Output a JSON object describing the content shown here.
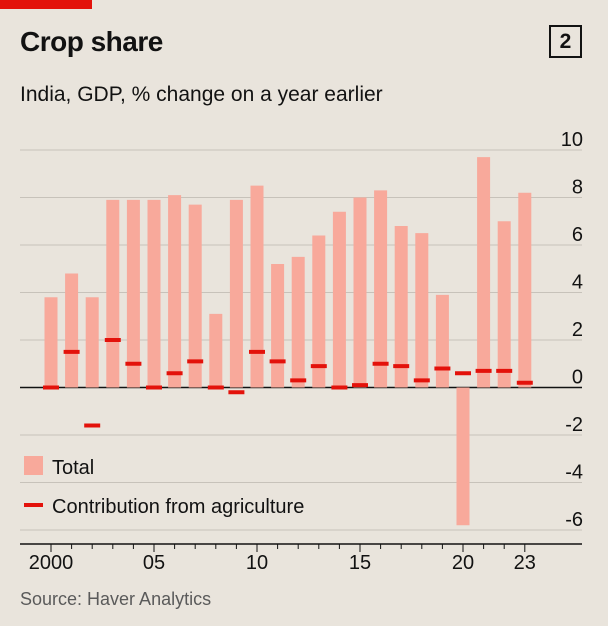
{
  "header": {
    "title": "Crop share",
    "subtitle": "India, GDP, % change on a year earlier",
    "badge": "2"
  },
  "footer": {
    "source": "Source: Haver Analytics"
  },
  "colors": {
    "total": "#f8a99b",
    "agriculture": "#e3120b",
    "grid": "#c7c2ba",
    "accent": "#e3120b"
  },
  "chart_data": {
    "type": "bar",
    "title": "Crop share",
    "subtitle": "India, GDP, % change on a year earlier",
    "years": [
      2000,
      2001,
      2002,
      2003,
      2004,
      2005,
      2006,
      2007,
      2008,
      2009,
      2010,
      2011,
      2012,
      2013,
      2014,
      2015,
      2016,
      2017,
      2018,
      2019,
      2020,
      2021,
      2022,
      2023
    ],
    "x_tick_labels": [
      {
        "year": 2000,
        "label": "2000"
      },
      {
        "year": 2005,
        "label": "05"
      },
      {
        "year": 2010,
        "label": "10"
      },
      {
        "year": 2015,
        "label": "15"
      },
      {
        "year": 2020,
        "label": "20"
      },
      {
        "year": 2023,
        "label": "23"
      }
    ],
    "y_ticks": [
      10,
      8,
      6,
      4,
      2,
      0,
      -2,
      -4,
      -6
    ],
    "ylim": [
      -6,
      10
    ],
    "y_axis_side": "right",
    "grid": true,
    "legend_position": "bottom-left",
    "series": [
      {
        "name": "Total",
        "style": "bar",
        "values": [
          3.8,
          4.8,
          3.8,
          7.9,
          7.9,
          7.9,
          8.1,
          7.7,
          3.1,
          7.9,
          8.5,
          5.2,
          5.5,
          6.4,
          7.4,
          8.0,
          8.3,
          6.8,
          6.5,
          3.9,
          -5.8,
          9.7,
          7.0,
          8.2
        ]
      },
      {
        "name": "Contribution from agriculture",
        "style": "dash",
        "values": [
          0.0,
          1.5,
          -1.6,
          2.0,
          1.0,
          0.0,
          0.6,
          1.1,
          0.0,
          -0.2,
          1.5,
          1.1,
          0.3,
          0.9,
          0.0,
          0.1,
          1.0,
          0.9,
          0.3,
          0.8,
          0.6,
          0.7,
          0.7,
          0.2
        ]
      }
    ]
  }
}
